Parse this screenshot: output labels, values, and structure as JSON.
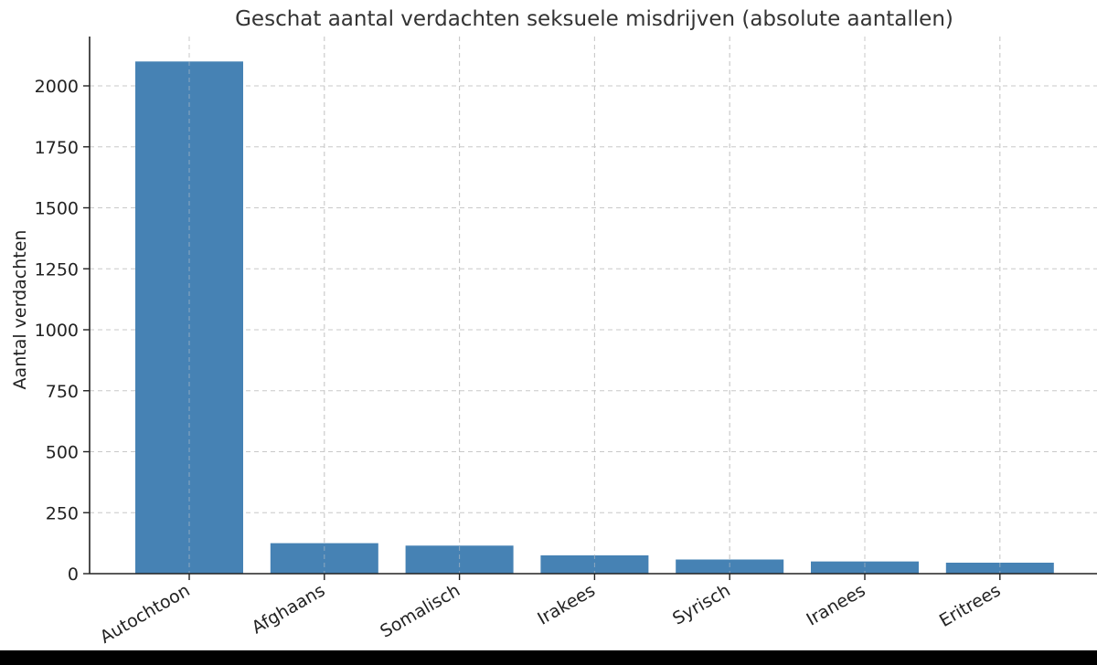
{
  "chart_data": {
    "type": "bar",
    "title": "Geschat aantal verdachten seksuele misdrijven (absolute aantallen)",
    "xlabel": "",
    "ylabel": "Aantal verdachten",
    "categories": [
      "Autochtoon",
      "Afghaans",
      "Somalisch",
      "Irakees",
      "Syrisch",
      "Iranees",
      "Eritrees"
    ],
    "values": [
      2100,
      125,
      115,
      75,
      58,
      50,
      45
    ],
    "ylim": [
      0,
      2100
    ],
    "yticks": [
      "0",
      "250",
      "500",
      "750",
      "1000",
      "1250",
      "1500",
      "1750",
      "2000"
    ],
    "bar_color": "#4682b4",
    "grid": true,
    "legend": "none"
  }
}
